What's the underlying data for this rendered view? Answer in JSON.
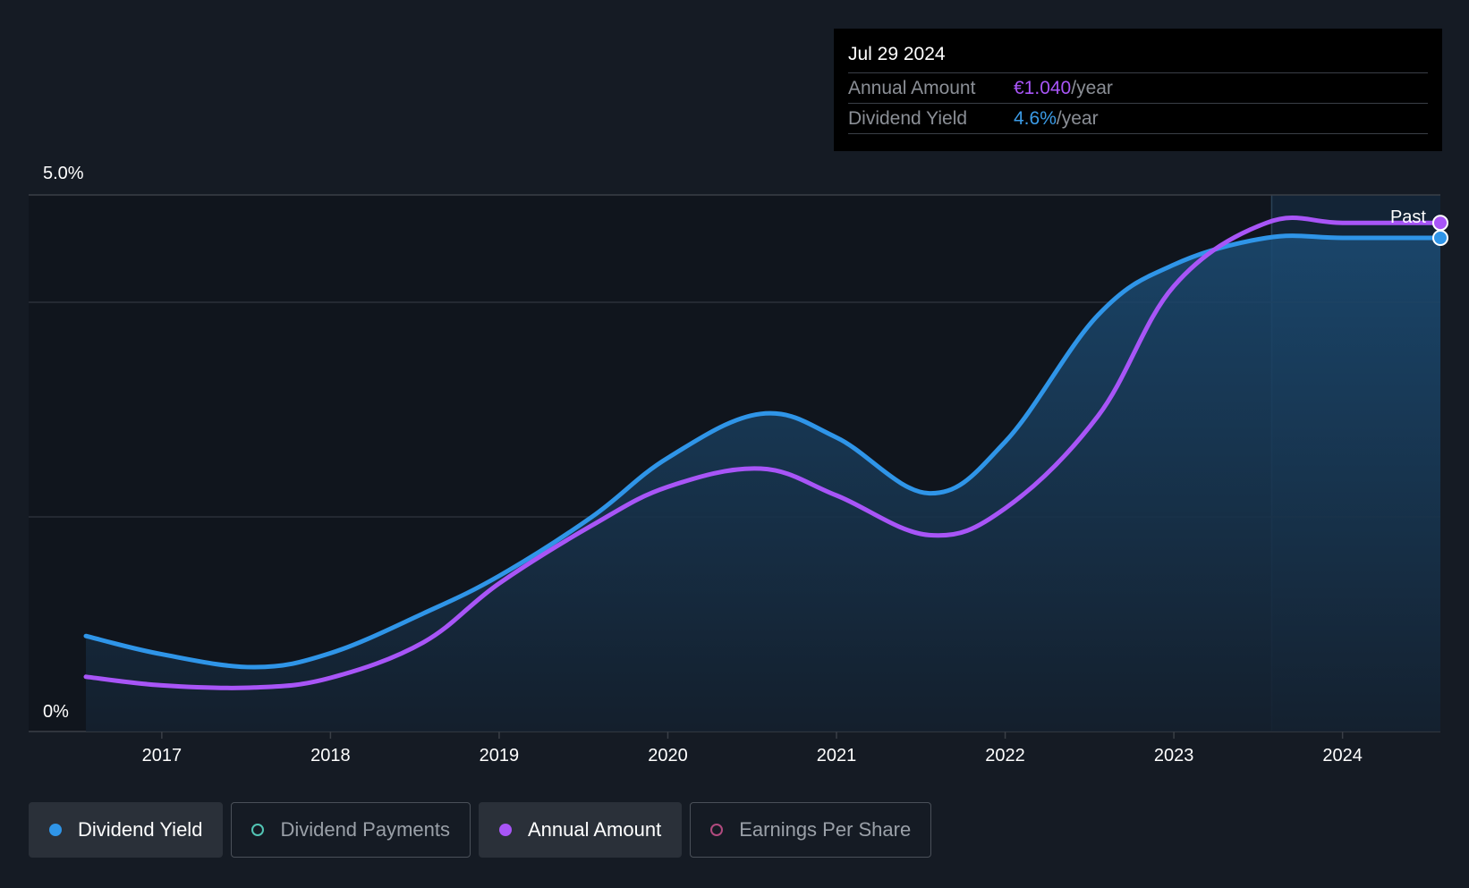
{
  "chart_data": {
    "type": "line",
    "x_axis": {
      "min": 2016.55,
      "max": 2024.58,
      "ticks": [
        "2017",
        "2018",
        "2019",
        "2020",
        "2021",
        "2022",
        "2023",
        "2024"
      ]
    },
    "y_axis": {
      "min": 0,
      "max": 5.0,
      "labels": {
        "top": "5.0%",
        "bottom": "0%"
      },
      "gridlines": [
        2.0,
        4.0
      ]
    },
    "past_label": "Past",
    "past_start": 2023.58,
    "series": [
      {
        "name": "Dividend Yield",
        "color": "#2f95e8",
        "filled": true,
        "x": [
          2016.55,
          2017.0,
          2017.55,
          2018.0,
          2018.55,
          2019.0,
          2019.55,
          2020.0,
          2020.55,
          2021.0,
          2021.55,
          2022.0,
          2022.55,
          2023.0,
          2023.55,
          2024.0,
          2024.58
        ],
        "y": [
          0.89,
          0.72,
          0.6,
          0.73,
          1.1,
          1.45,
          2.0,
          2.55,
          2.96,
          2.74,
          2.22,
          2.7,
          3.88,
          4.35,
          4.6,
          4.6,
          4.6
        ]
      },
      {
        "name": "Annual Amount",
        "color": "#a855f7",
        "filled": false,
        "x": [
          2016.55,
          2017.0,
          2017.55,
          2018.0,
          2018.55,
          2019.0,
          2019.55,
          2020.0,
          2020.55,
          2021.0,
          2021.55,
          2022.0,
          2022.55,
          2023.0,
          2023.55,
          2024.0,
          2024.58
        ],
        "y": [
          0.51,
          0.43,
          0.41,
          0.5,
          0.83,
          1.38,
          1.92,
          2.28,
          2.45,
          2.2,
          1.83,
          2.08,
          2.94,
          4.15,
          4.74,
          4.74,
          4.74
        ]
      }
    ]
  },
  "tooltip": {
    "date": "Jul 29 2024",
    "annual_label": "Annual Amount",
    "annual_value": "€1.040",
    "yield_label": "Dividend Yield",
    "yield_value": "4.6%",
    "unit": "/year"
  },
  "legend": [
    {
      "label": "Dividend Yield",
      "active": true
    },
    {
      "label": "Dividend Payments",
      "active": false
    },
    {
      "label": "Annual Amount",
      "active": true
    },
    {
      "label": "Earnings Per Share",
      "active": false
    }
  ],
  "colors": {
    "background": "#151b24",
    "yield": "#2f95e8",
    "annual": "#a855f7",
    "payments": "#52c4b4",
    "eps": "#b04a7e"
  }
}
